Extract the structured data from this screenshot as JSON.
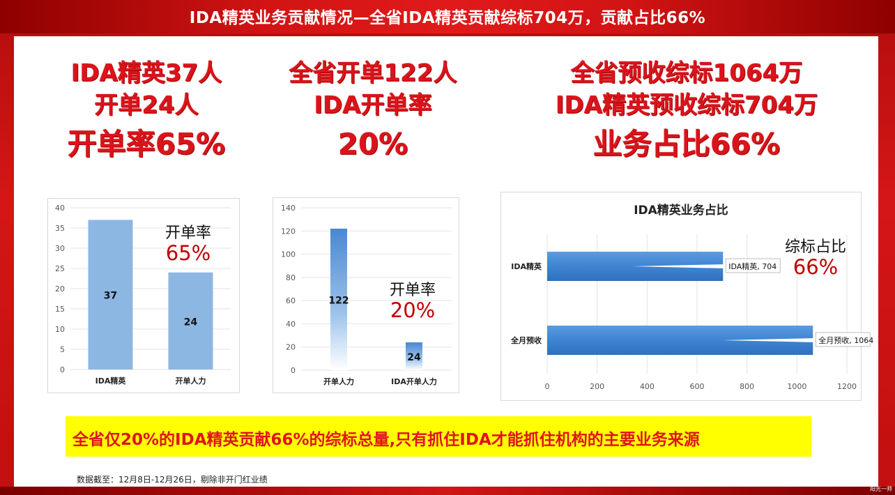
{
  "header": {
    "title": "IDA精英业务贡献情况—全省IDA精英贡献综标704万，贡献占比66%"
  },
  "headlines": {
    "left": [
      "IDA精英37人",
      "开单24人",
      "开单率65%"
    ],
    "middle": [
      "全省开单122人",
      "IDA开单率",
      "20%"
    ],
    "right": [
      "全省预收综标1064万",
      "IDA精英预收综标704万",
      "业务占比66%"
    ]
  },
  "annotations": {
    "chart1": {
      "label": "开单率",
      "value": "65%"
    },
    "chart2": {
      "label": "开单率",
      "value": "20%"
    },
    "chart3": {
      "label": "综标占比",
      "value": "66%"
    }
  },
  "chart_data": [
    {
      "type": "bar",
      "categories": [
        "IDA精英",
        "开单人力"
      ],
      "values": [
        37,
        24
      ],
      "ylim": [
        0,
        40
      ],
      "yticks": [
        0,
        5,
        10,
        15,
        20,
        25,
        30,
        35,
        40
      ],
      "title": "",
      "xlabel": "",
      "ylabel": "",
      "colors": [
        "#8db7e3"
      ]
    },
    {
      "type": "bar",
      "categories": [
        "开单人力",
        "IDA开单人力"
      ],
      "values": [
        122,
        24
      ],
      "ylim": [
        0,
        140
      ],
      "yticks": [
        0,
        20,
        40,
        60,
        80,
        100,
        120,
        140
      ],
      "title": "",
      "xlabel": "",
      "ylabel": "",
      "colors": [
        "#4a88d0"
      ]
    },
    {
      "type": "bar",
      "orientation": "horizontal",
      "title": "IDA精英业务占比",
      "categories": [
        "IDA精英",
        "全月预收"
      ],
      "values": [
        704,
        1064
      ],
      "data_labels": [
        "IDA精英, 704",
        "全月预收, 1064"
      ],
      "xlim": [
        0,
        1200
      ],
      "xticks": [
        0,
        200,
        400,
        600,
        800,
        1000,
        1200
      ],
      "xlabel": "",
      "ylabel": "",
      "colors": [
        "#3f84d2"
      ]
    }
  ],
  "conclusion": "全省仅20%的IDA精英贡献66%的综标总量,只有抓住IDA才能抓住机构的主要业务来源",
  "footnote": "数据截至：12月8日-12月26日，剔除非开门红业绩",
  "logo_text": "阳光一师"
}
